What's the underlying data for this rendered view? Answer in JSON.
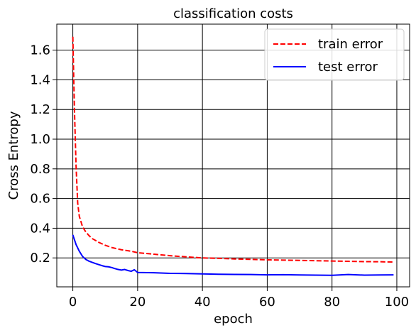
{
  "chart_data": {
    "type": "line",
    "title": "classification costs",
    "xlabel": "epoch",
    "ylabel": "Cross Entropy",
    "xlim": [
      -4.95,
      103.95
    ],
    "ylim": [
      0.005,
      1.775
    ],
    "xticks": [
      0,
      20,
      40,
      60,
      80,
      100
    ],
    "xtick_labels": [
      "0",
      "20",
      "40",
      "60",
      "80",
      "100"
    ],
    "yticks": [
      0.2,
      0.4,
      0.6,
      0.8,
      1.0,
      1.2,
      1.4,
      1.6
    ],
    "ytick_labels": [
      "0.2",
      "0.4",
      "0.6",
      "0.8",
      "1.0",
      "1.2",
      "1.4",
      "1.6"
    ],
    "grid": true,
    "legend_position": "top-right",
    "series": [
      {
        "name": "train error",
        "color": "#ff0000",
        "style": "dashed",
        "x": [
          0,
          0.5,
          1,
          1.5,
          2,
          3,
          4,
          5,
          6,
          8,
          10,
          12,
          15,
          18,
          20,
          25,
          30,
          35,
          40,
          45,
          50,
          55,
          60,
          65,
          70,
          75,
          80,
          85,
          90,
          95,
          99
        ],
        "y": [
          1.69,
          1.2,
          0.82,
          0.57,
          0.48,
          0.41,
          0.375,
          0.35,
          0.33,
          0.305,
          0.285,
          0.27,
          0.255,
          0.245,
          0.235,
          0.225,
          0.215,
          0.207,
          0.2,
          0.197,
          0.193,
          0.19,
          0.187,
          0.185,
          0.183,
          0.181,
          0.179,
          0.177,
          0.175,
          0.174,
          0.172
        ]
      },
      {
        "name": "test error",
        "color": "#0000ff",
        "style": "solid",
        "x": [
          0,
          1,
          2,
          3,
          4,
          5,
          6,
          7,
          8,
          9,
          10,
          11,
          12,
          13,
          14,
          15,
          16,
          17,
          18,
          19,
          20,
          25,
          30,
          35,
          40,
          45,
          50,
          55,
          60,
          65,
          70,
          75,
          80,
          85,
          90,
          95,
          99
        ],
        "y": [
          0.355,
          0.29,
          0.245,
          0.21,
          0.19,
          0.178,
          0.17,
          0.162,
          0.155,
          0.148,
          0.142,
          0.14,
          0.135,
          0.128,
          0.122,
          0.118,
          0.122,
          0.115,
          0.11,
          0.12,
          0.102,
          0.1,
          0.096,
          0.095,
          0.092,
          0.09,
          0.089,
          0.088,
          0.086,
          0.087,
          0.085,
          0.084,
          0.083,
          0.088,
          0.084,
          0.085,
          0.086
        ]
      }
    ]
  }
}
